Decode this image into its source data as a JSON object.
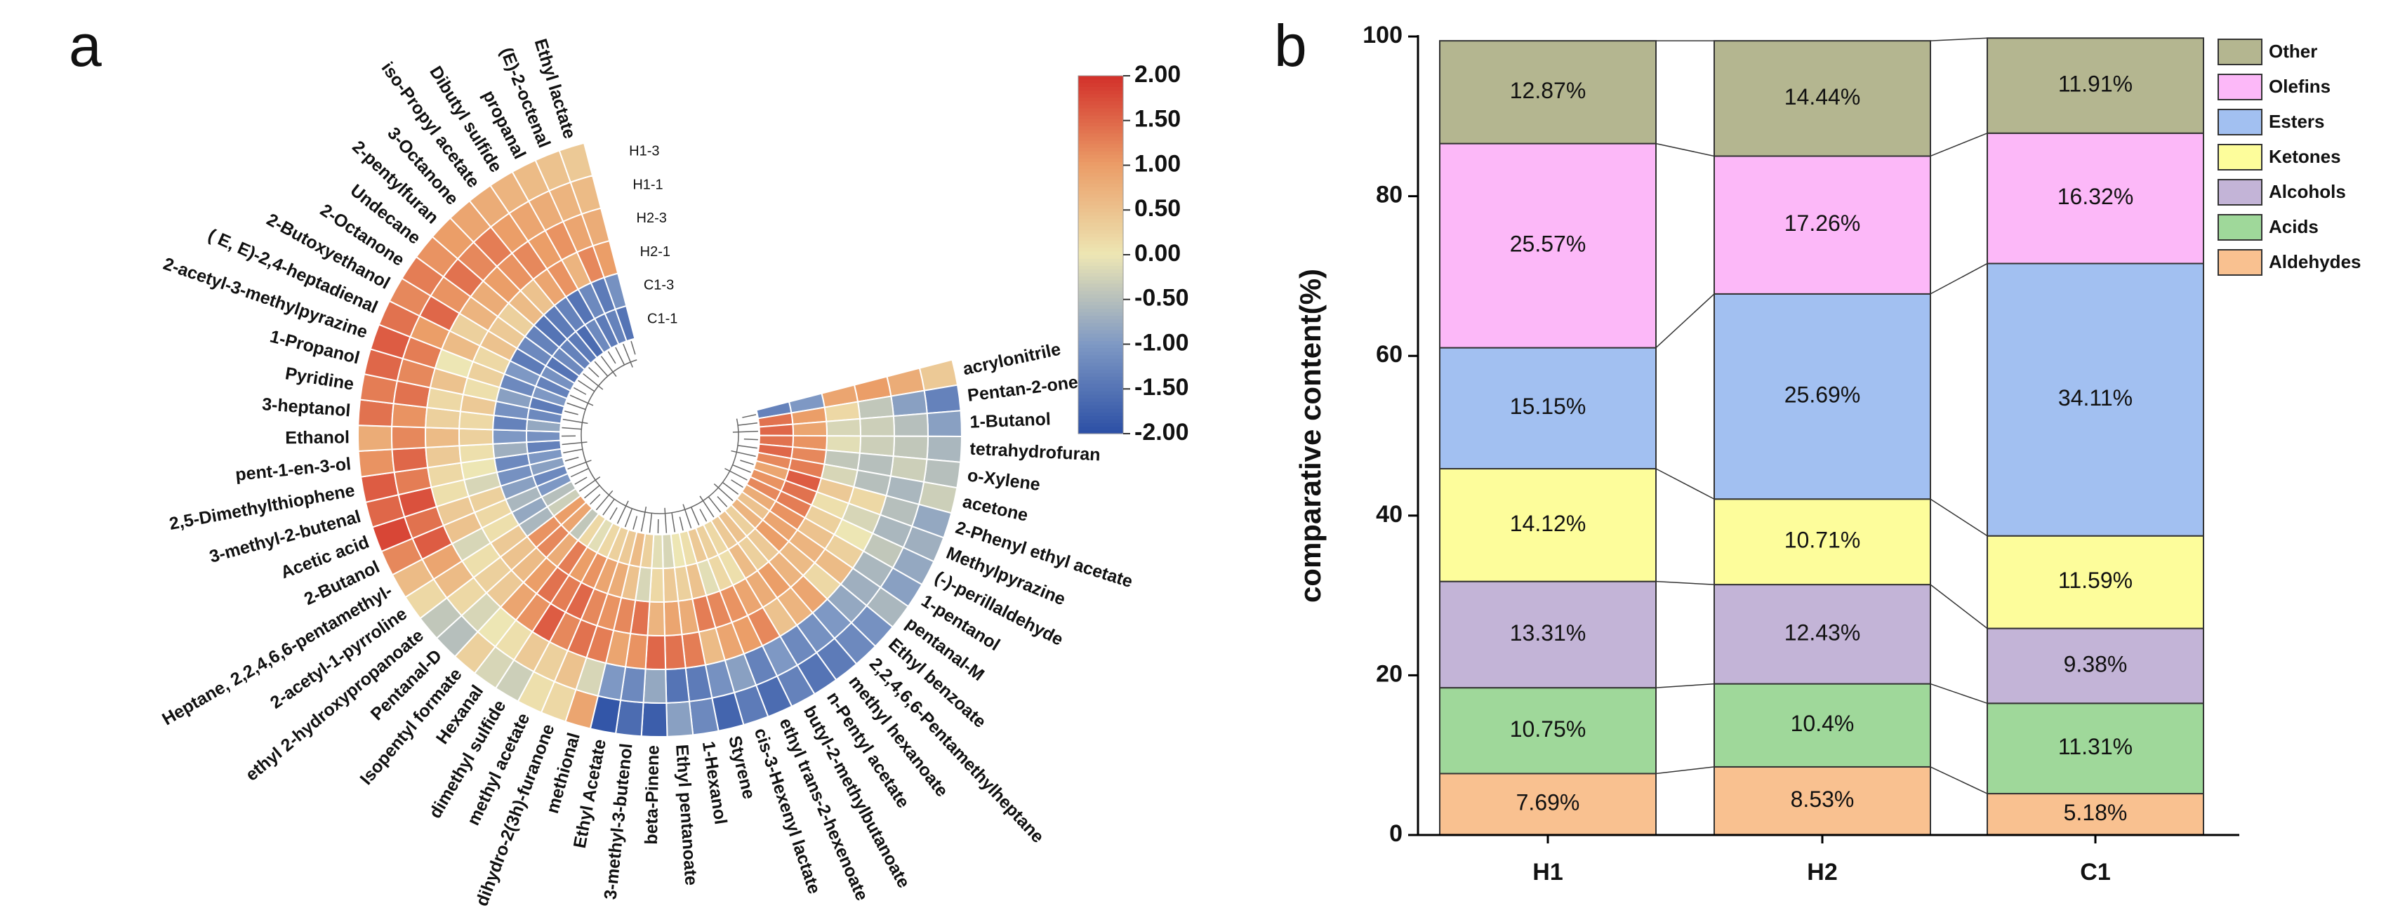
{
  "chart_data": [
    {
      "type": "heatmap",
      "panel_label": "a",
      "columns": [
        "H1-3",
        "H1-1",
        "H2-3",
        "H2-1",
        "C1-3",
        "C1-1"
      ],
      "rows": [
        "acrylonitrile",
        "Pentan-2-one",
        "1-Butanol",
        "tetrahydrofuran",
        "o-Xylene",
        "acetone",
        "2-Phenyl ethyl acetate",
        "Methylpyrazine",
        "(-)-perillaldehyde",
        "1-pentanol",
        "pentanal-M",
        "Ethyl benzoate",
        "2,2,4,6,6-Pentamethylheptane",
        "methyl hexanoate",
        "n-Pentyl acetate",
        "butyl-2-methylbutanoate",
        "ethyl trans-2-hexenoate",
        "cis-3-Hexenyl lactate",
        "Styrene",
        "1-Hexanol",
        "Ethyl pentanoate",
        "beta-Pinene",
        "3-methyl-3-butenol",
        "Ethyl Acetate",
        "methional",
        "dihydro-2(3h)-furanone",
        "methyl acetate",
        "dimethyl sulfide",
        "Hexanal",
        "Isopentyl formate",
        "Pentanal-D",
        "ethyl 2-hydroxypropanoate",
        "2-acetyl-1-pyrroline",
        "Heptane, 2,2,4,6,6-pentamethyl-",
        "2-Butanol",
        "Acetic acid",
        "3-methyl-2-butenal",
        "2,5-Dimethylthiophene",
        "pent-1-en-3-ol",
        "Ethanol",
        "3-heptanol",
        "Pyridine",
        "1-Propanol",
        "2-acetyl-3-methylpyrazine",
        "( E, E)-2,4-heptadienal",
        "2-Butoxyethanol",
        "2-Octanone",
        "Undecane",
        "2-pentylfuran",
        "3-Octanone",
        "iso-Propyl acetate",
        "Dibutyl sulfide",
        "propanal",
        "(E)-2-octenal",
        "Ethyl lactate"
      ],
      "values": [
        [
          0.4,
          0.8,
          1.0,
          0.9,
          -1.0,
          -1.3
        ],
        [
          -1.3,
          -0.9,
          -0.4,
          0.2,
          1.0,
          1.4
        ],
        [
          -0.9,
          -0.5,
          -0.3,
          -0.2,
          0.9,
          1.5
        ],
        [
          -0.6,
          -0.4,
          -0.3,
          -0.1,
          1.1,
          1.4
        ],
        [
          -0.5,
          -0.3,
          -0.5,
          -0.4,
          1.2,
          1.5
        ],
        [
          -0.3,
          -0.6,
          -0.5,
          -0.2,
          1.3,
          1.2
        ],
        [
          -0.8,
          -0.5,
          0.2,
          0.4,
          1.6,
          0.9
        ],
        [
          -0.7,
          -0.6,
          -0.2,
          0.1,
          1.4,
          1.1
        ],
        [
          -0.8,
          -0.4,
          0.0,
          0.3,
          1.3,
          1.2
        ],
        [
          -0.9,
          -0.6,
          0.3,
          0.5,
          1.1,
          0.8
        ],
        [
          -0.6,
          -0.7,
          0.6,
          0.7,
          0.9,
          0.5
        ],
        [
          -1.1,
          -0.8,
          0.2,
          0.6,
          1.0,
          0.7
        ],
        [
          -1.2,
          -1.0,
          0.9,
          0.7,
          0.4,
          0.3
        ],
        [
          -1.4,
          -1.1,
          0.7,
          1.0,
          0.3,
          0.5
        ],
        [
          -1.5,
          -1.2,
          0.5,
          0.8,
          0.6,
          0.4
        ],
        [
          -1.3,
          -1.0,
          1.2,
          0.9,
          0.1,
          0.2
        ],
        [
          -1.6,
          -1.3,
          1.0,
          1.1,
          0.2,
          0.3
        ],
        [
          -1.4,
          -0.9,
          0.9,
          1.2,
          -0.1,
          0.4
        ],
        [
          -1.7,
          -1.1,
          0.6,
          1.3,
          0.5,
          0.1
        ],
        [
          -1.2,
          -1.4,
          1.3,
          0.8,
          0.3,
          0.0
        ],
        [
          -0.9,
          -1.5,
          1.4,
          0.9,
          0.4,
          -0.2
        ],
        [
          -1.8,
          -0.8,
          1.5,
          0.7,
          0.2,
          -0.1
        ],
        [
          -1.6,
          -1.2,
          1.1,
          1.4,
          -0.2,
          0.3
        ],
        [
          -1.9,
          -1.0,
          0.9,
          1.2,
          0.5,
          0.6
        ],
        [
          0.9,
          -0.2,
          1.3,
          1.1,
          0.8,
          0.4
        ],
        [
          0.2,
          0.5,
          1.4,
          1.2,
          0.9,
          0.3
        ],
        [
          0.1,
          0.3,
          1.2,
          1.5,
          1.1,
          0.2
        ],
        [
          -0.3,
          0.4,
          1.6,
          1.3,
          1.0,
          -0.1
        ],
        [
          -0.2,
          0.1,
          1.1,
          1.4,
          1.3,
          0.2
        ],
        [
          0.3,
          0.0,
          0.9,
          1.0,
          0.8,
          -0.4
        ],
        [
          -0.5,
          -0.2,
          0.4,
          0.6,
          1.2,
          0.9
        ],
        [
          -0.4,
          0.2,
          0.3,
          0.5,
          1.1,
          1.0
        ],
        [
          0.2,
          0.6,
          0.1,
          0.4,
          -0.6,
          -0.3
        ],
        [
          0.6,
          0.9,
          -0.2,
          0.1,
          -0.8,
          -0.5
        ],
        [
          1.2,
          1.6,
          0.5,
          0.2,
          -0.6,
          -1.0
        ],
        [
          1.8,
          1.4,
          0.4,
          0.3,
          -0.9,
          -1.2
        ],
        [
          1.5,
          1.7,
          0.1,
          -0.2,
          -1.1,
          -0.9
        ],
        [
          1.6,
          1.3,
          0.2,
          0.0,
          -1.2,
          -1.0
        ],
        [
          1.1,
          1.5,
          0.4,
          0.1,
          -0.7,
          -1.3
        ],
        [
          0.8,
          1.2,
          0.6,
          0.3,
          -1.0,
          -1.1
        ],
        [
          1.4,
          1.1,
          0.3,
          0.2,
          -1.3,
          -0.8
        ],
        [
          1.3,
          1.4,
          0.2,
          0.4,
          -1.1,
          -1.2
        ],
        [
          1.5,
          1.2,
          0.5,
          0.1,
          -0.9,
          -1.4
        ],
        [
          1.6,
          1.3,
          0.0,
          0.3,
          -1.2,
          -1.0
        ],
        [
          1.4,
          1.0,
          0.6,
          0.2,
          -1.0,
          -1.3
        ],
        [
          1.2,
          1.5,
          0.3,
          0.5,
          -1.4,
          -1.1
        ],
        [
          1.3,
          1.1,
          0.7,
          0.4,
          -1.2,
          -1.5
        ],
        [
          1.1,
          1.4,
          0.8,
          0.3,
          -1.3,
          -1.2
        ],
        [
          1.0,
          1.2,
          1.0,
          0.6,
          -1.5,
          -1.3
        ],
        [
          0.9,
          1.3,
          1.1,
          0.5,
          -1.4,
          -1.4
        ],
        [
          0.8,
          1.0,
          1.2,
          0.9,
          -1.3,
          -1.6
        ],
        [
          0.7,
          0.9,
          1.0,
          1.1,
          -1.5,
          -1.2
        ],
        [
          0.6,
          0.8,
          1.1,
          0.7,
          -1.2,
          -1.4
        ],
        [
          0.5,
          0.7,
          0.9,
          1.2,
          -1.4,
          -1.3
        ],
        [
          0.4,
          0.6,
          0.8,
          1.0,
          -1.1,
          -1.5
        ]
      ],
      "zlim": [
        -2,
        2
      ],
      "colorscale": [
        "#2b4fa5",
        "#7e98c4",
        "#ede6b4",
        "#eb9e68",
        "#d3302a"
      ],
      "zticks": [
        {
          "value": 2,
          "label": "2.00"
        },
        {
          "value": 1.5,
          "label": "1.50"
        },
        {
          "value": 1,
          "label": "1.00"
        },
        {
          "value": 0.5,
          "label": "0.50"
        },
        {
          "value": 0,
          "label": "0.00"
        },
        {
          "value": -0.5,
          "label": "-0.50"
        },
        {
          "value": -1,
          "label": "-1.00"
        },
        {
          "value": -1.5,
          "label": "-1.50"
        },
        {
          "value": -2,
          "label": "-2.00"
        }
      ]
    },
    {
      "type": "stacked_bar",
      "panel_label": "b",
      "ylabel": "comparative content(%)",
      "categories": [
        "H1",
        "H2",
        "C1"
      ],
      "series": [
        {
          "name": "Aldehydes",
          "color": "#f9c190",
          "values": [
            7.69,
            8.53,
            5.18
          ],
          "value_labels": [
            "7.69%",
            "8.53%",
            "5.18%"
          ]
        },
        {
          "name": "Acids",
          "color": "#9fd89a",
          "values": [
            10.75,
            10.4,
            11.31
          ],
          "value_labels": [
            "10.75%",
            "10.4%",
            "11.31%"
          ]
        },
        {
          "name": "Alcohols",
          "color": "#c3b4d7",
          "values": [
            13.31,
            12.43,
            9.38
          ],
          "value_labels": [
            "13.31%",
            "12.43%",
            "9.38%"
          ]
        },
        {
          "name": "Ketones",
          "color": "#fdfd9b",
          "values": [
            14.12,
            10.71,
            11.59
          ],
          "value_labels": [
            "14.12%",
            "10.71%",
            "11.59%"
          ]
        },
        {
          "name": "Esters",
          "color": "#a2c0f1",
          "values": [
            15.15,
            25.69,
            34.11
          ],
          "value_labels": [
            "15.15%",
            "25.69%",
            "34.11%"
          ]
        },
        {
          "name": "Olefins",
          "color": "#fcb8f8",
          "values": [
            25.57,
            17.26,
            16.32
          ],
          "value_labels": [
            "25.57%",
            "17.26%",
            "16.32%"
          ]
        },
        {
          "name": "Other",
          "color": "#b4b690",
          "values": [
            12.87,
            14.44,
            11.91
          ],
          "value_labels": [
            "12.87%",
            "14.44%",
            "11.91%"
          ]
        }
      ],
      "ylim": [
        0,
        100
      ],
      "yticks": [
        0,
        20,
        40,
        60,
        80,
        100
      ]
    }
  ]
}
